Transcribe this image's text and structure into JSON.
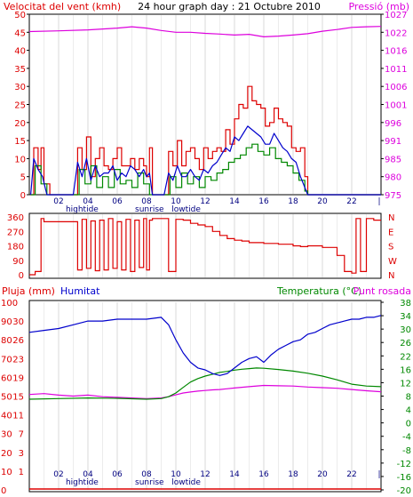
{
  "chart_data": [
    {
      "type": "line",
      "title": "24 hour graph day : 21 Octubre 2010",
      "left_label": "Velocitat del vent (kmh)",
      "right_label": "Pressió (mb)",
      "y_ticks": [
        "0",
        "5",
        "10",
        "15",
        "20",
        "25",
        "30",
        "35",
        "40",
        "45",
        "50"
      ],
      "y2_ticks": [
        "975",
        "980",
        "985",
        "991",
        "996",
        "1001",
        "1006",
        "1011",
        "1016",
        "1022",
        "1027"
      ],
      "x_ticks": [
        "02",
        "04",
        "06",
        "08",
        "10",
        "12",
        "14",
        "16",
        "18",
        "20",
        "22"
      ],
      "ylim": [
        0,
        50
      ],
      "y2lim": [
        975,
        1027
      ],
      "colors": {
        "gust": "#dd0000",
        "wind": "#0000cc",
        "avg": "#008800",
        "pressure": "#dd00dd"
      },
      "series": [
        {
          "values_ref": "pressure",
          "x": [
            0,
            2,
            4,
            6,
            7,
            8,
            9,
            10,
            11,
            12,
            13,
            14,
            15,
            16,
            17,
            18,
            19,
            20,
            21,
            22,
            23,
            24
          ],
          "values": [
            1022.0,
            1022.2,
            1022.5,
            1023.0,
            1023.4,
            1023.0,
            1022.3,
            1021.8,
            1021.8,
            1021.5,
            1021.3,
            1021.0,
            1021.2,
            1020.5,
            1020.7,
            1021.0,
            1021.4,
            1022.1,
            1022.6,
            1023.2,
            1023.4,
            1023.5
          ]
        },
        {
          "values_ref": "wind_gust",
          "x": [
            0.1,
            0.3,
            0.6,
            0.8,
            1.0,
            1.4,
            2.2,
            3.0,
            3.3,
            3.6,
            3.9,
            4.2,
            4.5,
            4.8,
            5.1,
            5.4,
            5.7,
            6.0,
            6.3,
            6.6,
            6.9,
            7.2,
            7.5,
            7.8,
            8.0,
            8.2,
            8.4,
            8.6,
            9.2,
            9.5,
            9.8,
            10.1,
            10.4,
            10.7,
            11.0,
            11.3,
            11.6,
            11.9,
            12.2,
            12.5,
            12.8,
            13.1,
            13.4,
            13.7,
            14.0,
            14.3,
            14.6,
            14.9,
            15.2,
            15.5,
            15.8,
            16.1,
            16.4,
            16.7,
            17.0,
            17.3,
            17.6,
            17.9,
            18.2,
            18.5,
            18.8,
            19.0,
            24.0
          ],
          "values": [
            0,
            13,
            7,
            13,
            3,
            0,
            0,
            0,
            13,
            7,
            16,
            5,
            10,
            13,
            8,
            7,
            10,
            13,
            8,
            8,
            10,
            7,
            10,
            8,
            5,
            13,
            0,
            0,
            0,
            12,
            8,
            15,
            8,
            12,
            13,
            10,
            7,
            13,
            10,
            12,
            13,
            12,
            18,
            14,
            21,
            25,
            24,
            30,
            26,
            25,
            24,
            19,
            20,
            24,
            21,
            20,
            19,
            13,
            12,
            13,
            5,
            0,
            0
          ]
        },
        {
          "values_ref": "wind_avg",
          "x": [
            0.1,
            0.3,
            0.6,
            0.9,
            1.2,
            2.2,
            3.0,
            3.3,
            3.6,
            3.9,
            4.2,
            4.5,
            4.8,
            5.1,
            5.4,
            5.7,
            6.0,
            6.3,
            6.6,
            6.9,
            7.2,
            7.5,
            7.8,
            8.0,
            8.2,
            8.4,
            9.2,
            9.5,
            9.8,
            10.1,
            10.4,
            10.7,
            11.0,
            11.3,
            11.6,
            11.9,
            12.2,
            12.5,
            12.8,
            13.1,
            13.4,
            13.7,
            14.0,
            14.3,
            14.6,
            14.9,
            15.2,
            15.5,
            15.8,
            16.1,
            16.4,
            16.7,
            17.0,
            17.3,
            17.6,
            17.9,
            18.2,
            18.5,
            18.8,
            19.0,
            24.0
          ],
          "values": [
            0,
            10,
            7,
            5,
            0,
            0,
            0,
            9,
            5,
            10,
            4,
            8,
            5,
            6,
            6,
            8,
            4,
            6,
            5,
            8,
            7,
            5,
            7,
            5,
            6,
            0,
            0,
            6,
            4,
            8,
            5,
            5,
            7,
            5,
            4,
            7,
            6,
            8,
            9,
            11,
            13,
            12,
            16,
            15,
            17,
            19,
            18,
            17,
            16,
            14,
            14,
            17,
            15,
            13,
            12,
            10,
            9,
            5,
            2,
            0,
            0
          ]
        },
        {
          "values_ref": "wind_low",
          "x": [
            0.1,
            0.4,
            0.8,
            1.2,
            3.0,
            3.4,
            3.8,
            4.2,
            4.6,
            5.0,
            5.4,
            5.8,
            6.2,
            6.6,
            7.0,
            7.4,
            7.8,
            8.2,
            9.2,
            9.6,
            10.0,
            10.4,
            10.8,
            11.2,
            11.6,
            12.0,
            12.4,
            12.8,
            13.2,
            13.6,
            14.0,
            14.4,
            14.8,
            15.2,
            15.6,
            16.0,
            16.4,
            16.8,
            17.2,
            17.6,
            18.0,
            18.4,
            18.8,
            19.0,
            24.0
          ],
          "values": [
            0,
            8,
            3,
            0,
            0,
            7,
            3,
            8,
            2,
            5,
            2,
            7,
            3,
            4,
            2,
            6,
            3,
            0,
            0,
            5,
            2,
            6,
            3,
            5,
            2,
            5,
            4,
            6,
            7,
            9,
            10,
            11,
            13,
            14,
            12,
            11,
            13,
            10,
            9,
            8,
            6,
            4,
            1,
            0,
            0
          ]
        }
      ]
    },
    {
      "type": "line",
      "y_ticks": [
        "0",
        "90",
        "180",
        "270",
        "360"
      ],
      "y2_ticks": [
        "N",
        "E",
        "S",
        "W",
        "N"
      ],
      "ylim": [
        0,
        360
      ],
      "color": "#dd0000",
      "x": [
        0.0,
        0.4,
        0.8,
        1.0,
        1.3,
        2.2,
        3.0,
        3.3,
        3.6,
        3.9,
        4.2,
        4.5,
        4.8,
        5.1,
        5.4,
        5.7,
        6.0,
        6.3,
        6.6,
        6.9,
        7.2,
        7.5,
        7.8,
        8.0,
        8.2,
        8.4,
        9.2,
        9.5,
        10.0,
        10.5,
        11.0,
        11.5,
        12.0,
        12.5,
        13.0,
        13.5,
        14.0,
        14.5,
        15.0,
        16.0,
        17.0,
        18.0,
        18.5,
        19.0,
        20.0,
        21.0,
        21.5,
        22.0,
        22.3,
        22.6,
        23.0,
        23.5,
        24.0
      ],
      "values": [
        0,
        20,
        350,
        330,
        330,
        330,
        330,
        30,
        345,
        40,
        335,
        25,
        340,
        30,
        350,
        40,
        330,
        30,
        345,
        20,
        340,
        45,
        350,
        30,
        340,
        350,
        350,
        20,
        345,
        340,
        320,
        310,
        300,
        270,
        245,
        225,
        215,
        210,
        200,
        195,
        190,
        180,
        175,
        180,
        170,
        120,
        20,
        10,
        350,
        20,
        350,
        340,
        340
      ]
    },
    {
      "type": "line",
      "left_label": "Pluja (mm)",
      "left_label2": "Humitat",
      "right_label": "Temperatura (°C)",
      "right_label2": "Punt rosada",
      "y_ticks": [
        "0",
        "10",
        "20",
        "30",
        "40",
        "50",
        "60",
        "70",
        "80",
        "90",
        "100"
      ],
      "y_ticks_b": [
        "1",
        "3",
        "7",
        "11",
        "15",
        "19",
        "23",
        "26",
        "30"
      ],
      "y2_ticks": [
        "-20",
        "-16",
        "-12",
        "-8",
        "-4",
        "0",
        "4",
        "8",
        "12",
        "16",
        "22",
        "26",
        "30",
        "34",
        "38"
      ],
      "x_ticks": [
        "02",
        "04",
        "06",
        "08",
        "10",
        "12",
        "14",
        "16",
        "18",
        "20",
        "22"
      ],
      "x_sub": {
        "hightide": 3.6,
        "sunrise": 8.2,
        "lowtide": 10.7
      },
      "ylim": [
        0,
        100
      ],
      "y2lim": [
        -20,
        40
      ],
      "colors": {
        "humidity": "#0000cc",
        "temperature": "#008800",
        "dewpoint": "#dd00dd",
        "rain": "#dd0000"
      },
      "series": [
        {
          "values_ref": "humidity",
          "x": [
            0,
            1,
            2,
            3,
            4,
            5,
            6,
            7,
            8,
            9,
            9.5,
            10,
            10.5,
            11,
            11.5,
            12,
            12.5,
            13,
            13.5,
            14,
            14.5,
            15,
            15.5,
            16,
            16.5,
            17,
            17.5,
            18,
            18.5,
            19,
            19.5,
            20,
            20.5,
            21,
            21.5,
            22,
            22.5,
            23,
            23.5,
            24
          ],
          "values": [
            84,
            85,
            86,
            88,
            90,
            90,
            91,
            91,
            91,
            92,
            88,
            80,
            73,
            68,
            65,
            64,
            62,
            61,
            62,
            65,
            68,
            70,
            71,
            68,
            72,
            75,
            77,
            79,
            80,
            83,
            84,
            86,
            88,
            89,
            90,
            91,
            91,
            92,
            92,
            93
          ]
        },
        {
          "values_ref": "temperature",
          "x": [
            0,
            2,
            4,
            6,
            8,
            9,
            9.5,
            10,
            10.5,
            11,
            11.5,
            12,
            12.5,
            13,
            13.5,
            14,
            14.5,
            15,
            15.5,
            16,
            17,
            18,
            19,
            20,
            21,
            22,
            23,
            24
          ],
          "values": [
            9.0,
            9.2,
            9.4,
            9.3,
            9.0,
            9.2,
            9.8,
            11.0,
            12.8,
            14.5,
            15.6,
            16.4,
            17.0,
            17.6,
            17.9,
            18.3,
            18.6,
            18.8,
            19.0,
            18.9,
            18.5,
            18.0,
            17.3,
            16.4,
            15.2,
            13.8,
            13.2,
            13.0
          ]
        },
        {
          "values_ref": "dewpoint",
          "x": [
            0,
            1,
            2,
            3,
            4,
            5,
            6,
            7,
            8,
            9,
            9.5,
            10,
            10.5,
            11,
            11.5,
            12,
            12.5,
            13,
            14,
            15,
            16,
            17,
            18,
            19,
            20,
            21,
            22,
            23,
            24
          ],
          "values": [
            10.5,
            10.8,
            10.3,
            10.0,
            10.3,
            9.8,
            9.6,
            9.4,
            9.2,
            9.4,
            9.8,
            10.4,
            11.0,
            11.3,
            11.6,
            11.8,
            12.0,
            12.1,
            12.6,
            13.0,
            13.4,
            13.3,
            13.2,
            12.9,
            12.7,
            12.5,
            12.1,
            11.7,
            11.4
          ]
        },
        {
          "values_ref": "rain",
          "x": [
            0,
            24
          ],
          "values": [
            0,
            0
          ]
        }
      ]
    }
  ]
}
